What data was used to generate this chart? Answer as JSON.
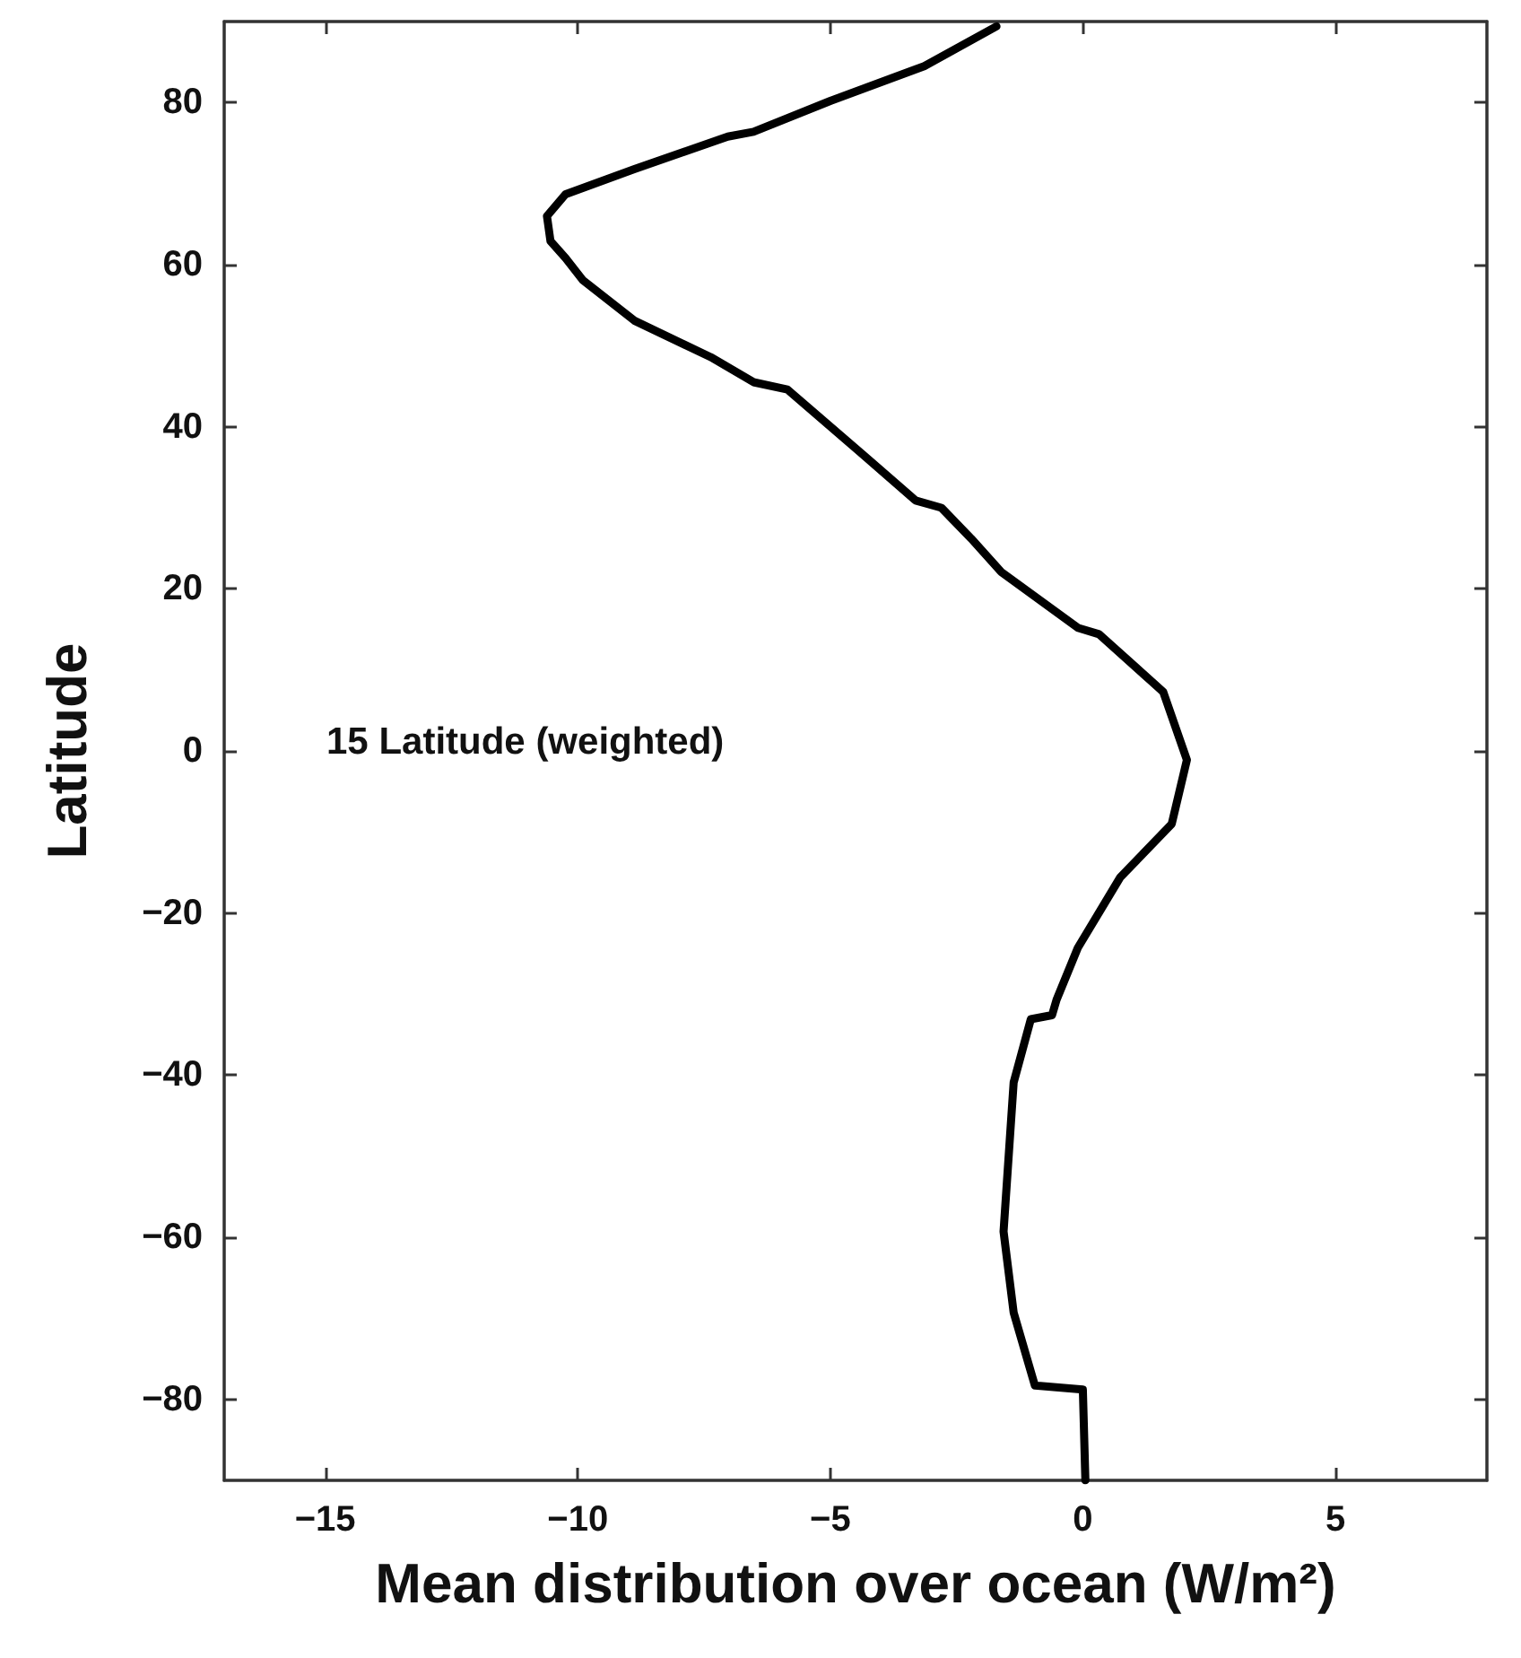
{
  "chart_data": {
    "type": "line",
    "xlabel": "Mean distribution over ocean (W/m²)",
    "ylabel": "Latitude",
    "annotations": [
      "15 Latitude (weighted)"
    ],
    "x": [
      -1.71,
      -3.14,
      -5.0,
      -6.52,
      -7.03,
      -8.88,
      -10.24,
      -10.61,
      -10.54,
      -10.24,
      -9.9,
      -8.88,
      -7.37,
      -6.52,
      -5.85,
      -4.49,
      -3.31,
      -2.8,
      -2.21,
      -1.62,
      -0.1,
      0.32,
      1.59,
      2.06,
      1.76,
      0.74,
      -0.1,
      -0.52,
      -0.61,
      -1.03,
      -1.37,
      -1.57,
      -1.37,
      -0.95,
      0.0,
      0.05
    ],
    "series": [
      {
        "color": "#000000",
        "values": [
          89.4,
          84.5,
          80.2,
          76.4,
          75.8,
          71.8,
          68.7,
          66.0,
          62.9,
          60.8,
          58.1,
          53.1,
          48.6,
          45.5,
          44.6,
          37.3,
          30.9,
          30.0,
          26.2,
          22.1,
          15.2,
          14.4,
          7.3,
          -1.1,
          -9.0,
          -15.6,
          -24.3,
          -30.7,
          -32.6,
          -33.1,
          -40.9,
          -59.3,
          -69.3,
          -78.3,
          -78.8,
          -90
        ]
      }
    ],
    "xlim": [
      -17,
      8
    ],
    "xticks": [
      -15,
      -10,
      -5,
      0,
      5
    ],
    "ylim": [
      -90,
      90
    ],
    "yticks": [
      -80,
      -60,
      -40,
      -20,
      0,
      20,
      40,
      60,
      80
    ],
    "grid": false,
    "marker": "none",
    "line_style": "solid"
  }
}
